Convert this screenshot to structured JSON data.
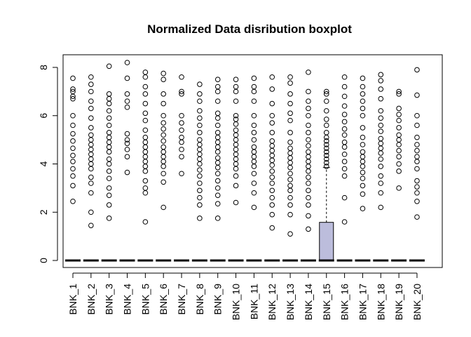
{
  "chart_data": {
    "type": "boxplot",
    "title": "Normalized Data disribution boxplot",
    "xlabel": "",
    "ylabel": "",
    "ylim": [
      -0.3,
      8.4
    ],
    "yticks": [
      0,
      2,
      4,
      6,
      8
    ],
    "grid": false,
    "legend": "none",
    "box_fill": "#bcbddc",
    "point_color": "#000000",
    "categories": [
      "BNK_1",
      "BNK_2",
      "BNK_3",
      "BNK_4",
      "BNK_5",
      "BNK_6",
      "BNK_7",
      "BNK_8",
      "BNK_9",
      "BNK_10",
      "BNK_11",
      "BNK_12",
      "BNK_13",
      "BNK_14",
      "BNK_15",
      "BNK_16",
      "BNK_17",
      "BNK_18",
      "BNK_19",
      "BNK_20"
    ],
    "boxes": [
      {
        "q1": 0,
        "median": 0,
        "q3": 0,
        "whisker_low": 0,
        "whisker_high": 0,
        "outliers": [
          2.45,
          3.1,
          3.5,
          3.8,
          4.1,
          4.35,
          4.65,
          4.95,
          5.25,
          5.6,
          6.0,
          6.7,
          6.8,
          7.0,
          7.1,
          7.55
        ]
      },
      {
        "q1": 0,
        "median": 0,
        "q3": 0,
        "whisker_low": 0,
        "whisker_high": 0,
        "outliers": [
          1.45,
          2.0,
          2.8,
          3.2,
          3.45,
          3.8,
          4.0,
          4.2,
          4.4,
          4.6,
          4.8,
          5.0,
          5.2,
          5.5,
          5.9,
          6.3,
          6.6,
          7.0,
          7.3,
          7.6
        ]
      },
      {
        "q1": 0,
        "median": 0,
        "q3": 0,
        "whisker_low": 0,
        "whisker_high": 0,
        "outliers": [
          1.75,
          2.3,
          2.7,
          3.0,
          3.4,
          3.7,
          4.0,
          4.2,
          4.5,
          4.7,
          4.9,
          5.1,
          5.3,
          5.6,
          5.9,
          6.2,
          6.5,
          6.7,
          6.9,
          8.05
        ]
      },
      {
        "q1": 0,
        "median": 0,
        "q3": 0,
        "whisker_low": 0,
        "whisker_high": 0,
        "outliers": [
          3.65,
          4.3,
          4.6,
          4.85,
          5.0,
          5.25,
          6.35,
          6.6,
          6.9,
          7.55,
          8.2
        ]
      },
      {
        "q1": 0,
        "median": 0,
        "q3": 0,
        "whisker_low": 0,
        "whisker_high": 0,
        "outliers": [
          1.6,
          2.8,
          3.0,
          3.3,
          3.7,
          3.9,
          4.1,
          4.3,
          4.5,
          4.7,
          4.9,
          5.1,
          5.4,
          5.8,
          6.1,
          6.5,
          6.9,
          7.2,
          7.6,
          7.8
        ]
      },
      {
        "q1": 0,
        "median": 0,
        "q3": 0,
        "whisker_low": 0,
        "whisker_high": 0,
        "outliers": [
          2.2,
          3.25,
          3.6,
          3.9,
          4.1,
          4.3,
          4.5,
          4.7,
          4.95,
          5.2,
          5.45,
          5.7,
          6.0,
          6.5,
          6.9,
          7.5,
          7.75
        ]
      },
      {
        "q1": 0,
        "median": 0,
        "q3": 0,
        "whisker_low": 0,
        "whisker_high": 0,
        "outliers": [
          3.6,
          4.3,
          4.6,
          4.9,
          5.1,
          5.4,
          5.7,
          6.0,
          6.9,
          7.0,
          7.6
        ]
      },
      {
        "q1": 0,
        "median": 0,
        "q3": 0,
        "whisker_low": 0,
        "whisker_high": 0,
        "outliers": [
          1.75,
          2.3,
          2.6,
          2.9,
          3.2,
          3.5,
          3.75,
          4.0,
          4.2,
          4.4,
          4.6,
          4.8,
          5.0,
          5.3,
          5.6,
          5.9,
          6.2,
          6.6,
          6.9,
          7.3
        ]
      },
      {
        "q1": 0,
        "median": 0,
        "q3": 0,
        "whisker_low": 0,
        "whisker_high": 0,
        "outliers": [
          1.75,
          2.35,
          2.7,
          3.0,
          3.3,
          3.6,
          3.85,
          4.05,
          4.25,
          4.5,
          4.7,
          4.9,
          5.1,
          5.3,
          5.6,
          5.9,
          6.1,
          6.6,
          7.0,
          7.2,
          7.5
        ]
      },
      {
        "q1": 0,
        "median": 0,
        "q3": 0,
        "whisker_low": 0,
        "whisker_high": 0,
        "outliers": [
          2.4,
          3.1,
          3.5,
          3.8,
          4.0,
          4.2,
          4.4,
          4.6,
          4.8,
          5.0,
          5.2,
          5.4,
          5.65,
          5.85,
          6.0,
          6.6,
          7.0,
          7.2,
          7.5
        ]
      },
      {
        "q1": 0,
        "median": 0,
        "q3": 0,
        "whisker_low": 0,
        "whisker_high": 0,
        "outliers": [
          2.2,
          2.8,
          3.2,
          3.6,
          3.9,
          4.1,
          4.3,
          4.5,
          4.7,
          5.0,
          5.3,
          5.6,
          6.0,
          6.6,
          7.0,
          7.2,
          7.55
        ]
      },
      {
        "q1": 0,
        "median": 0,
        "q3": 0,
        "whisker_low": 0,
        "whisker_high": 0,
        "outliers": [
          1.35,
          1.9,
          2.3,
          2.6,
          2.9,
          3.2,
          3.45,
          3.7,
          3.95,
          4.15,
          4.35,
          4.55,
          4.75,
          4.95,
          5.3,
          5.7,
          6.0,
          6.5,
          7.1,
          7.6
        ]
      },
      {
        "q1": 0,
        "median": 0,
        "q3": 0,
        "whisker_low": 0,
        "whisker_high": 0,
        "outliers": [
          1.1,
          1.9,
          2.3,
          2.6,
          2.9,
          3.1,
          3.35,
          3.6,
          3.85,
          4.05,
          4.25,
          4.45,
          4.65,
          4.9,
          5.3,
          5.8,
          6.1,
          6.5,
          6.9,
          7.35,
          7.6
        ]
      },
      {
        "q1": 0,
        "median": 0,
        "q3": 0,
        "whisker_low": 0,
        "whisker_high": 0,
        "outliers": [
          1.3,
          1.85,
          2.3,
          2.6,
          2.9,
          3.2,
          3.45,
          3.7,
          3.9,
          4.1,
          4.3,
          4.5,
          4.75,
          5.0,
          5.3,
          5.6,
          6.0,
          6.3,
          6.6,
          7.0,
          7.8
        ]
      },
      {
        "q1": 0,
        "median": 0,
        "q3": 1.58,
        "whisker_low": 0,
        "whisker_high": 3.85,
        "outliers": [
          3.9,
          4.05,
          4.2,
          4.35,
          4.5,
          4.65,
          4.8,
          4.95,
          5.1,
          5.3,
          5.6,
          5.85,
          6.2,
          6.6,
          6.9,
          7.0
        ]
      },
      {
        "q1": 0,
        "median": 0,
        "q3": 0,
        "whisker_low": 0,
        "whisker_high": 0,
        "outliers": [
          1.6,
          2.6,
          3.5,
          3.8,
          4.1,
          4.4,
          4.7,
          4.9,
          5.2,
          5.45,
          5.75,
          6.05,
          6.4,
          6.8,
          7.2,
          7.6
        ]
      },
      {
        "q1": 0,
        "median": 0,
        "q3": 0,
        "whisker_low": 0,
        "whisker_high": 0,
        "outliers": [
          2.15,
          2.75,
          3.1,
          3.4,
          3.65,
          3.9,
          4.1,
          4.3,
          4.5,
          4.8,
          5.1,
          5.5,
          6.0,
          6.3,
          6.6,
          6.9,
          7.2,
          7.55
        ]
      },
      {
        "q1": 0,
        "median": 0,
        "q3": 0,
        "whisker_low": 0,
        "whisker_high": 0,
        "outliers": [
          2.2,
          2.8,
          3.2,
          3.5,
          3.9,
          4.2,
          4.45,
          4.65,
          4.85,
          5.05,
          5.35,
          5.6,
          5.9,
          6.2,
          6.7,
          7.1,
          7.45,
          7.7
        ]
      },
      {
        "q1": 0,
        "median": 0,
        "q3": 0,
        "whisker_low": 0,
        "whisker_high": 0,
        "outliers": [
          3.0,
          3.7,
          4.0,
          4.3,
          4.55,
          4.8,
          5.0,
          5.2,
          5.5,
          5.8,
          6.05,
          6.3,
          6.9,
          7.0
        ]
      },
      {
        "q1": 0,
        "median": 0,
        "q3": 0,
        "whisker_low": 0,
        "whisker_high": 0,
        "outliers": [
          1.8,
          2.45,
          2.8,
          3.05,
          3.3,
          3.8,
          4.1,
          4.3,
          4.55,
          4.8,
          5.1,
          5.6,
          6.0,
          6.85,
          7.9
        ]
      }
    ]
  }
}
